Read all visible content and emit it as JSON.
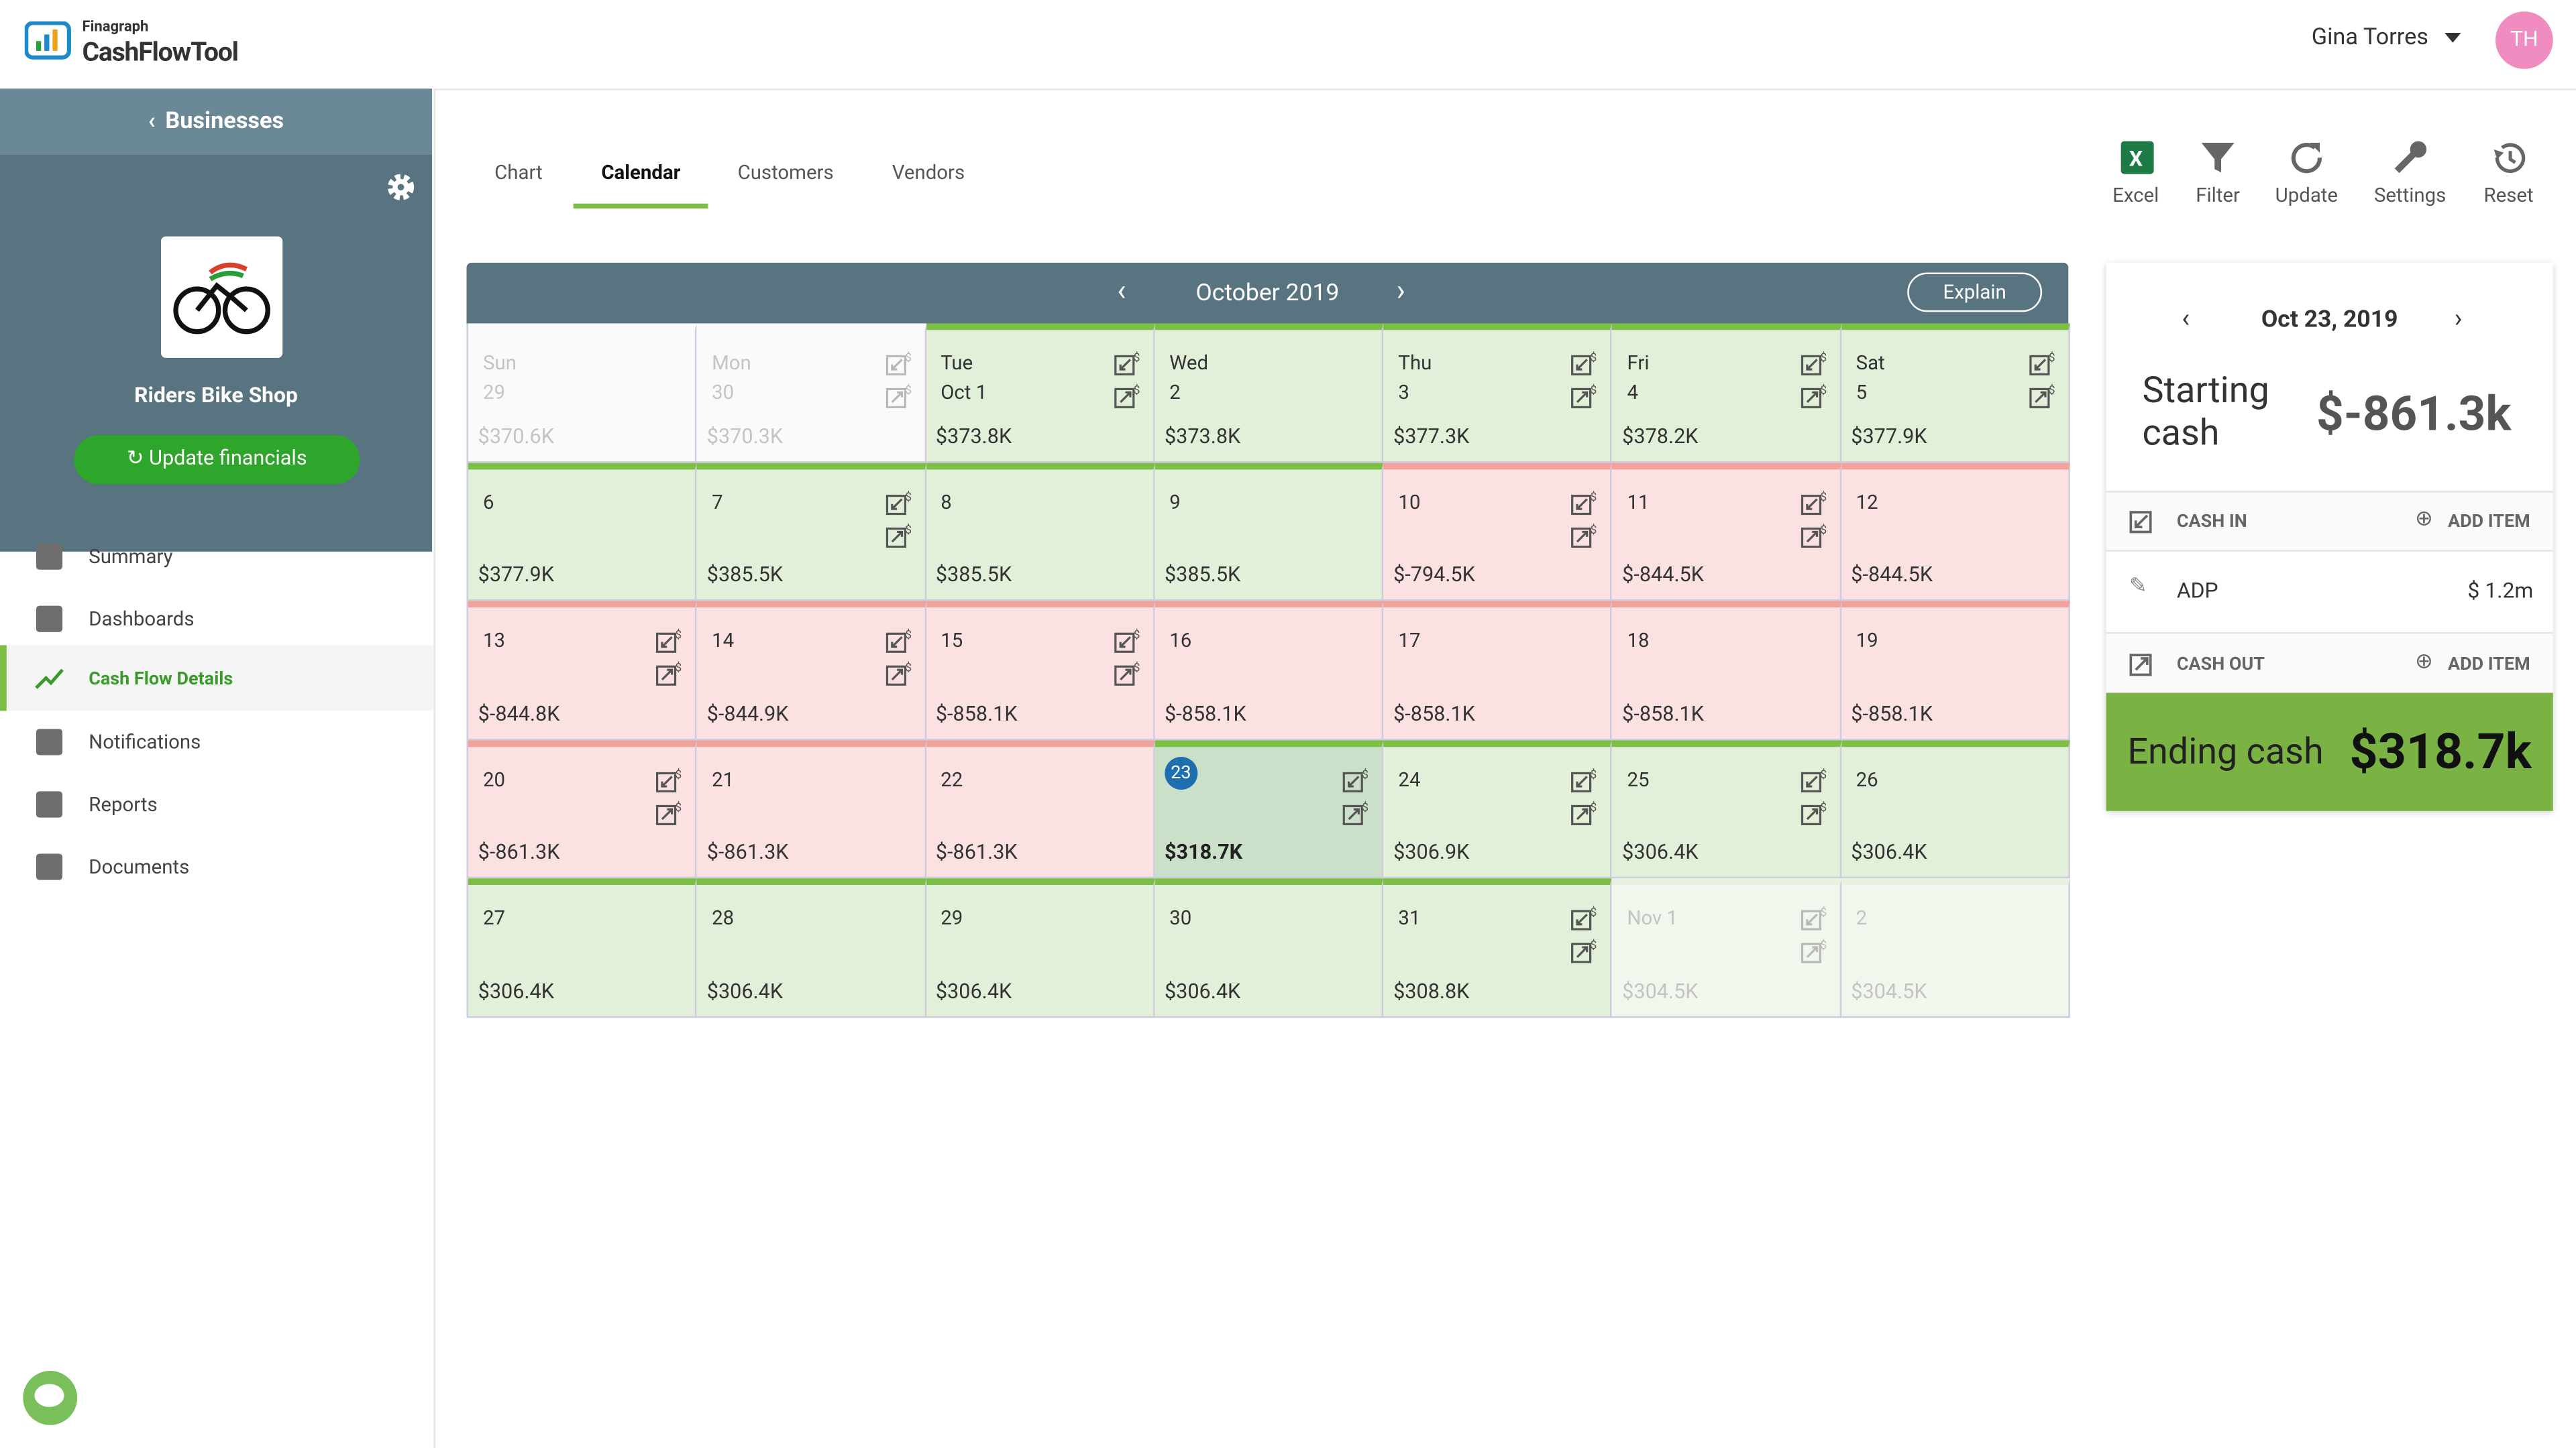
{
  "header": {
    "brand_small": "Finagraph",
    "brand": "CashFlowTool",
    "user": "Gina Torres",
    "avatar": "TH"
  },
  "sidebar": {
    "back": "Businesses",
    "business": "Riders Bike Shop",
    "button": "Update financials",
    "nav": [
      "Summary",
      "Dashboards",
      "Cash Flow Details",
      "Notifications",
      "Reports",
      "Documents"
    ]
  },
  "tabs": [
    "Chart",
    "Calendar",
    "Customers",
    "Vendors"
  ],
  "toolbar": [
    "Excel",
    "Filter",
    "Update",
    "Settings",
    "Reset"
  ],
  "calendar": {
    "month": "October 2019",
    "explain": "Explain",
    "cells": [
      {
        "top": "Sun",
        "day": "29",
        "amount": "$370.6K",
        "color": "#fafafa",
        "bar": "#fafafa",
        "text": "#c4c4c4"
      },
      {
        "top": "Mon",
        "day": "30",
        "amount": "$370.3K",
        "color": "#fafafa",
        "bar": "#fafafa",
        "text": "#c4c4c4"
      },
      {
        "top": "Tue",
        "day": "Oct 1",
        "amount": "$373.8K",
        "color": "#e2efd9",
        "bar": "#7cbf45",
        "text": "#333"
      },
      {
        "top": "Wed",
        "day": "2",
        "amount": "$373.8K",
        "color": "#e2efd9",
        "bar": "#7cbf45",
        "text": "#333"
      },
      {
        "top": "Thu",
        "day": "3",
        "amount": "$377.3K",
        "color": "#e2efd9",
        "bar": "#7cbf45",
        "text": "#333"
      },
      {
        "top": "Fri",
        "day": "4",
        "amount": "$378.2K",
        "color": "#e2efd9",
        "bar": "#7cbf45",
        "text": "#333"
      },
      {
        "top": "Sat",
        "day": "5",
        "amount": "$377.9K",
        "color": "#e2efd9",
        "bar": "#7cbf45",
        "text": "#333"
      },
      {
        "day": "6",
        "amount": "$377.9K",
        "color": "#e2efd9",
        "bar": "#7cbf45",
        "text": "#333"
      },
      {
        "day": "7",
        "amount": "$385.5K",
        "color": "#e2efd9",
        "bar": "#7cbf45",
        "text": "#333"
      },
      {
        "day": "8",
        "amount": "$385.5K",
        "color": "#e2efd9",
        "bar": "#7cbf45",
        "text": "#333"
      },
      {
        "day": "9",
        "amount": "$385.5K",
        "color": "#e2efd9",
        "bar": "#7cbf45",
        "text": "#333"
      },
      {
        "day": "10",
        "amount": "$-794.5K",
        "color": "#fbe1e1",
        "bar": "#f2a29c",
        "text": "#333"
      },
      {
        "day": "11",
        "amount": "$-844.5K",
        "color": "#fbe1e1",
        "bar": "#f2a29c",
        "text": "#333"
      },
      {
        "day": "12",
        "amount": "$-844.5K",
        "color": "#fbe1e1",
        "bar": "#f2a29c",
        "text": "#333"
      },
      {
        "day": "13",
        "amount": "$-844.8K",
        "color": "#fbe1e1",
        "bar": "#f2a29c",
        "text": "#333"
      },
      {
        "day": "14",
        "amount": "$-844.9K",
        "color": "#fbe1e1",
        "bar": "#f2a29c",
        "text": "#333"
      },
      {
        "day": "15",
        "amount": "$-858.1K",
        "color": "#fbe1e1",
        "bar": "#f2a29c",
        "text": "#333"
      },
      {
        "day": "16",
        "amount": "$-858.1K",
        "color": "#fbe1e1",
        "bar": "#f2a29c",
        "text": "#333"
      },
      {
        "day": "17",
        "amount": "$-858.1K",
        "color": "#fbe1e1",
        "bar": "#f2a29c",
        "text": "#333"
      },
      {
        "day": "18",
        "amount": "$-858.1K",
        "color": "#fbe1e1",
        "bar": "#f2a29c",
        "text": "#333"
      },
      {
        "day": "19",
        "amount": "$-858.1K",
        "color": "#fbe1e1",
        "bar": "#f2a29c",
        "text": "#333"
      },
      {
        "day": "20",
        "amount": "$-861.3K",
        "color": "#fbe1e1",
        "bar": "#f2a29c",
        "text": "#333"
      },
      {
        "day": "21",
        "amount": "$-861.3K",
        "color": "#fbe1e1",
        "bar": "#f2a29c",
        "text": "#333"
      },
      {
        "day": "22",
        "amount": "$-861.3K",
        "color": "#fbe1e1",
        "bar": "#f2a29c",
        "text": "#333"
      },
      {
        "day": "23",
        "amount": "$318.7K",
        "color": "#cbe0c9",
        "bar": "#7cbf45",
        "text": "#222"
      },
      {
        "day": "24",
        "amount": "$306.9K",
        "color": "#e2efd9",
        "bar": "#7cbf45",
        "text": "#333"
      },
      {
        "day": "25",
        "amount": "$306.4K",
        "color": "#e2efd9",
        "bar": "#7cbf45",
        "text": "#333"
      },
      {
        "day": "26",
        "amount": "$306.4K",
        "color": "#e2efd9",
        "bar": "#7cbf45",
        "text": "#333"
      },
      {
        "day": "27",
        "amount": "$306.4K",
        "color": "#e2efd9",
        "bar": "#7cbf45",
        "text": "#333"
      },
      {
        "day": "28",
        "amount": "$306.4K",
        "color": "#e2efd9",
        "bar": "#7cbf45",
        "text": "#333"
      },
      {
        "day": "29",
        "amount": "$306.4K",
        "color": "#e2efd9",
        "bar": "#7cbf45",
        "text": "#333"
      },
      {
        "day": "30",
        "amount": "$306.4K",
        "color": "#e2efd9",
        "bar": "#7cbf45",
        "text": "#333"
      },
      {
        "day": "31",
        "amount": "$308.8K",
        "color": "#e2efd9",
        "bar": "#7cbf45",
        "text": "#333"
      },
      {
        "day": "Nov 1",
        "amount": "$304.5K",
        "color": "#f1f7ec",
        "bar": "#e8f1e0",
        "text": "#c4c4c4"
      },
      {
        "day": "2",
        "amount": "$304.5K",
        "color": "#f1f7ec",
        "bar": "#e8f1e0",
        "text": "#c4c4c4"
      }
    ]
  },
  "panel": {
    "date": "Oct 23, 2019",
    "starting_label": "Starting cash",
    "starting_value": "$-861.3k",
    "cash_in": "CASH IN",
    "add_in": "ADD ITEM",
    "item_name": "ADP",
    "item_value": "$ 1.2m",
    "cash_out": "CASH OUT",
    "add_out": "ADD ITEM",
    "ending_label": "Ending cash",
    "ending_value": "$318.7k"
  }
}
